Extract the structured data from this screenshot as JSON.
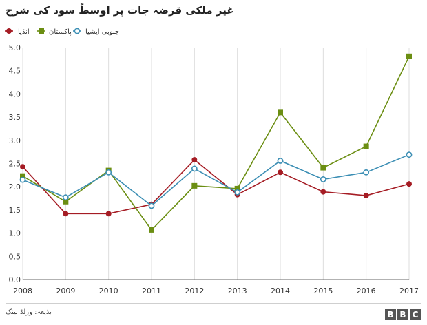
{
  "title": "غیر ملکی قرضہ جات پر اوسطً سود کی شرح",
  "source": "بذیعہ: ورلڈ بینک",
  "logo_letters": [
    "B",
    "B",
    "C"
  ],
  "colors": {
    "india": "#a51c24",
    "pakistan": "#6b8e12",
    "south_asia": "#3b8eb4",
    "grid": "#dddddd",
    "axis": "#666666"
  },
  "chart_data": {
    "type": "line",
    "x": [
      "2008",
      "2009",
      "2010",
      "2011",
      "2012",
      "2013",
      "2014",
      "2015",
      "2016",
      "2017"
    ],
    "ylim": [
      0,
      5
    ],
    "yticks": [
      "0.0",
      "0.5",
      "1.0",
      "1.5",
      "2.0",
      "2.5",
      "3.0",
      "3.5",
      "4.0",
      "4.5",
      "5.0"
    ],
    "grid": "vertical",
    "legend": "top-left",
    "series": [
      {
        "name": "انڈیا",
        "key": "india",
        "marker": "circle-filled",
        "values": [
          2.43,
          1.42,
          1.42,
          1.62,
          2.58,
          1.83,
          2.31,
          1.89,
          1.81,
          2.06
        ]
      },
      {
        "name": "پاکستان",
        "key": "pakistan",
        "marker": "square",
        "values": [
          2.23,
          1.68,
          2.35,
          1.07,
          2.02,
          1.96,
          3.6,
          2.41,
          2.87,
          4.81
        ]
      },
      {
        "name": "جنوبی ایشیا",
        "key": "south_asia",
        "marker": "circle-open",
        "values": [
          2.15,
          1.77,
          2.31,
          1.59,
          2.39,
          1.88,
          2.56,
          2.16,
          2.31,
          2.69
        ]
      }
    ]
  }
}
